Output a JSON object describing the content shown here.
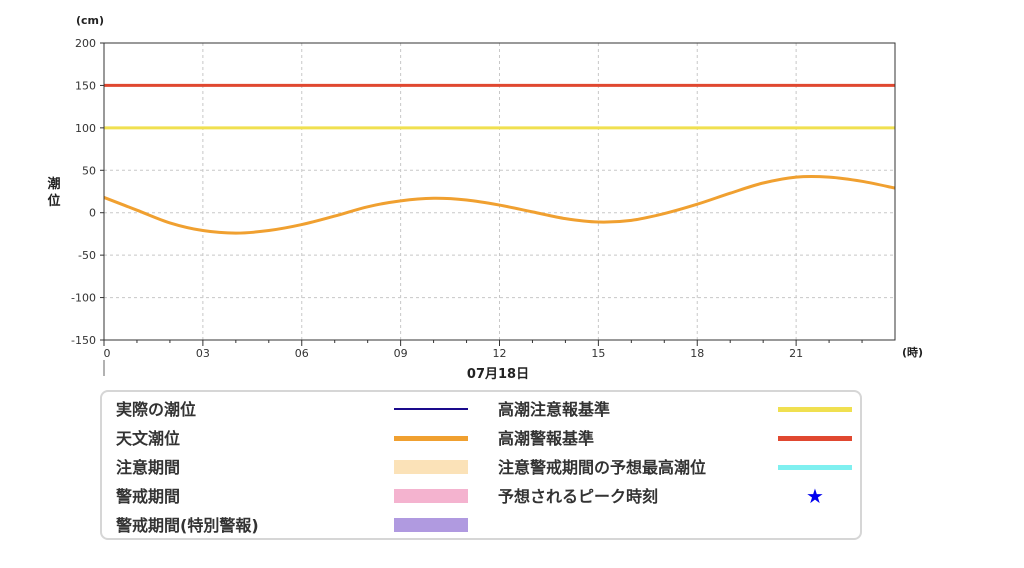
{
  "chart_data": {
    "type": "line",
    "y_unit": "(cm)",
    "ylabel": "潮位",
    "x_unit": "(時)",
    "date_label": "07月18日",
    "ylim": [
      -150,
      200
    ],
    "y_ticks": [
      200,
      150,
      100,
      50,
      0,
      -50,
      -100,
      -150
    ],
    "x_ticks": [
      "0",
      "03",
      "06",
      "09",
      "12",
      "15",
      "18",
      "21"
    ],
    "x_tick_hours": [
      0,
      3,
      6,
      9,
      12,
      15,
      18,
      21
    ],
    "xlim": [
      0,
      24
    ],
    "grid": true,
    "series": [
      {
        "name": "天文潮位",
        "color": "#f0a030",
        "x": [
          0,
          1,
          2,
          3,
          4,
          5,
          6,
          7,
          8,
          9,
          10,
          11,
          12,
          13,
          14,
          15,
          16,
          17,
          18,
          19,
          20,
          21,
          22,
          23,
          24
        ],
        "y": [
          18,
          3,
          -12,
          -21,
          -24,
          -21,
          -14,
          -4,
          7,
          14,
          17,
          15,
          9,
          1,
          -7,
          -11,
          -9,
          -1,
          10,
          23,
          35,
          42,
          42,
          37,
          29
        ]
      }
    ],
    "reference_lines": [
      {
        "name": "高潮警報基準",
        "value": 150,
        "color": "#e04830"
      },
      {
        "name": "高潮注意報基準",
        "value": 100,
        "color": "#f0e050"
      }
    ]
  },
  "legend": {
    "items": [
      {
        "label": "実際の潮位",
        "kind": "line",
        "color": "#1a0a8c"
      },
      {
        "label": "天文潮位",
        "kind": "line",
        "color": "#f0a030"
      },
      {
        "label": "注意期間",
        "kind": "band",
        "color": "#fbe2b8"
      },
      {
        "label": "警戒期間",
        "kind": "band",
        "color": "#f4b3cf"
      },
      {
        "label": "警戒期間(特別警報)",
        "kind": "band",
        "color": "#b09ae0"
      },
      {
        "label": "高潮注意報基準",
        "kind": "line",
        "color": "#f0e050"
      },
      {
        "label": "高潮警報基準",
        "kind": "line",
        "color": "#e04830"
      },
      {
        "label": "注意警戒期間の予想最高潮位",
        "kind": "line",
        "color": "#7ff0f0"
      },
      {
        "label": "予想されるピーク時刻",
        "kind": "star",
        "color": "#0000ee",
        "symbol": "★"
      }
    ]
  }
}
